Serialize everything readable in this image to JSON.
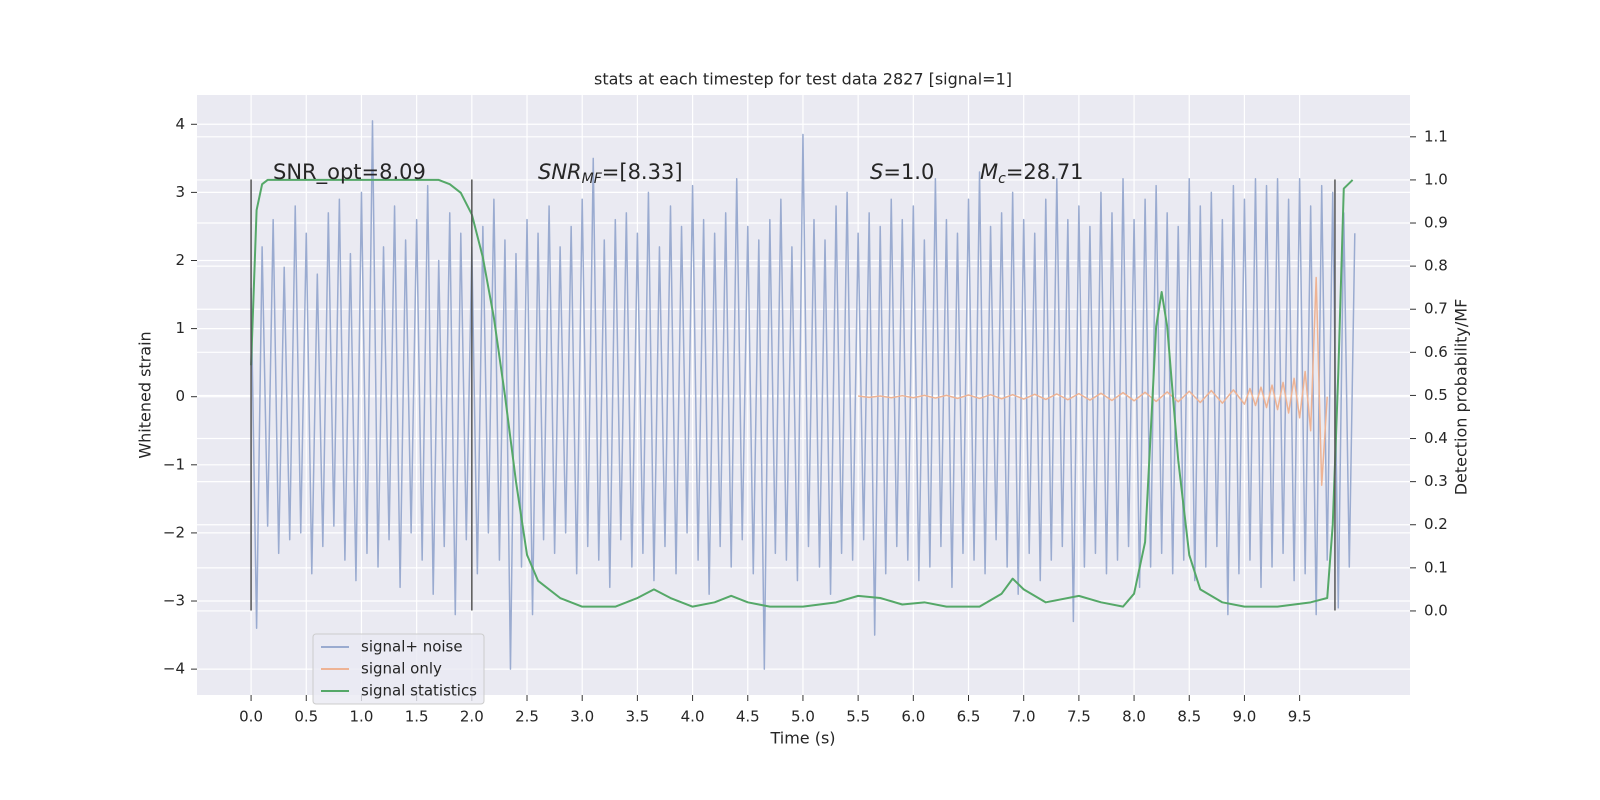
{
  "chart_data": {
    "type": "line",
    "title": "stats at each timestep for test data 2827 [signal=1]",
    "xlabel": "Time (s)",
    "ylabel": "Whitened strain",
    "y2label": "Detection probability/MF",
    "x": [
      0.0,
      0.05,
      0.1,
      0.15,
      0.2,
      0.25,
      0.3,
      0.35,
      0.4,
      0.45,
      0.5,
      0.55,
      0.6,
      0.65,
      0.7,
      0.75,
      0.8,
      0.85,
      0.9,
      0.95,
      1.0,
      1.05,
      1.1,
      1.15,
      1.2,
      1.25,
      1.3,
      1.35,
      1.4,
      1.45,
      1.5,
      1.55,
      1.6,
      1.65,
      1.7,
      1.75,
      1.8,
      1.85,
      1.9,
      1.95,
      2.0,
      2.05,
      2.1,
      2.15,
      2.2,
      2.25,
      2.3,
      2.35,
      2.4,
      2.45,
      2.5,
      2.55,
      2.6,
      2.65,
      2.7,
      2.75,
      2.8,
      2.85,
      2.9,
      2.95,
      3.0,
      3.05,
      3.1,
      3.15,
      3.2,
      3.25,
      3.3,
      3.35,
      3.4,
      3.45,
      3.5,
      3.55,
      3.6,
      3.65,
      3.7,
      3.75,
      3.8,
      3.85,
      3.9,
      3.95,
      4.0,
      4.05,
      4.1,
      4.15,
      4.2,
      4.25,
      4.3,
      4.35,
      4.4,
      4.45,
      4.5,
      4.55,
      4.6,
      4.65,
      4.7,
      4.75,
      4.8,
      4.85,
      4.9,
      4.95,
      5.0,
      5.05,
      5.1,
      5.15,
      5.2,
      5.25,
      5.3,
      5.35,
      5.4,
      5.45,
      5.5,
      5.55,
      5.6,
      5.65,
      5.7,
      5.75,
      5.8,
      5.85,
      5.9,
      5.95,
      6.0,
      6.05,
      6.1,
      6.15,
      6.2,
      6.25,
      6.3,
      6.35,
      6.4,
      6.45,
      6.5,
      6.55,
      6.6,
      6.65,
      6.7,
      6.75,
      6.8,
      6.85,
      6.9,
      6.95,
      7.0,
      7.05,
      7.1,
      7.15,
      7.2,
      7.25,
      7.3,
      7.35,
      7.4,
      7.45,
      7.5,
      7.55,
      7.6,
      7.65,
      7.7,
      7.75,
      7.8,
      7.85,
      7.9,
      7.95,
      8.0,
      8.05,
      8.1,
      8.15,
      8.2,
      8.25,
      8.3,
      8.35,
      8.4,
      8.45,
      8.5,
      8.55,
      8.6,
      8.65,
      8.7,
      8.75,
      8.8,
      8.85,
      8.9,
      8.95,
      9.0,
      9.05,
      9.1,
      9.15,
      9.2,
      9.25,
      9.3,
      9.35,
      9.4,
      9.45,
      9.5,
      9.55,
      9.6,
      9.65,
      9.7,
      9.75,
      9.8,
      9.85,
      9.9,
      9.95,
      10.0
    ],
    "series": [
      {
        "name": "signal+ noise",
        "color": "#9aabd0",
        "values": [
          1.6,
          -3.4,
          2.2,
          -1.9,
          2.6,
          -2.3,
          1.9,
          -2.1,
          2.8,
          -2.0,
          2.4,
          -2.6,
          1.8,
          -2.2,
          2.7,
          -1.9,
          2.9,
          -2.4,
          2.1,
          -2.7,
          3.0,
          -2.3,
          4.05,
          -2.5,
          2.2,
          -2.1,
          2.8,
          -2.8,
          2.3,
          -2.0,
          2.6,
          -2.4,
          3.1,
          -2.9,
          2.0,
          -2.2,
          2.7,
          -3.2,
          2.4,
          -2.1,
          2.2,
          -2.6,
          2.5,
          -2.0,
          2.9,
          -2.4,
          2.3,
          -4.0,
          2.1,
          -2.5,
          2.6,
          -3.2,
          2.4,
          -2.1,
          2.8,
          -2.3,
          2.2,
          -2.0,
          2.5,
          -2.6,
          2.9,
          -2.2,
          3.5,
          -2.4,
          2.3,
          -2.8,
          2.6,
          -2.1,
          2.7,
          -2.5,
          2.4,
          -2.3,
          3.0,
          -2.7,
          2.2,
          -2.2,
          2.8,
          -2.6,
          2.5,
          -2.0,
          3.1,
          -2.4,
          2.6,
          -2.9,
          2.4,
          -2.2,
          2.7,
          -2.5,
          3.2,
          -2.1,
          2.5,
          -2.6,
          2.3,
          -4.0,
          2.6,
          -2.3,
          2.9,
          -2.4,
          2.2,
          -2.7,
          3.85,
          -2.2,
          2.6,
          -2.5,
          2.3,
          -2.9,
          2.8,
          -2.3,
          3.0,
          -2.4,
          2.4,
          -2.1,
          2.7,
          -3.5,
          2.5,
          -2.6,
          2.9,
          -2.2,
          2.6,
          -2.4,
          2.8,
          -2.7,
          2.3,
          -2.5,
          3.2,
          -2.2,
          2.6,
          -2.8,
          2.4,
          -2.3,
          2.9,
          -2.4,
          3.3,
          -2.6,
          2.5,
          -2.1,
          2.7,
          -2.5,
          3.0,
          -2.9,
          2.6,
          -2.3,
          2.4,
          -2.7,
          2.9,
          -2.4,
          3.2,
          -2.2,
          2.6,
          -3.3,
          2.8,
          -2.5,
          2.5,
          -2.3,
          3.0,
          -2.6,
          2.7,
          -2.4,
          3.2,
          -2.2,
          2.6,
          -2.8,
          2.9,
          -2.5,
          3.1,
          -2.3,
          2.7,
          -2.6,
          2.5,
          -2.4,
          3.2,
          -2.7,
          2.8,
          -2.5,
          3.0,
          -2.2,
          2.6,
          -3.2,
          3.1,
          -2.6,
          2.9,
          -2.4,
          3.2,
          -2.8,
          3.1,
          -2.5,
          3.2,
          -2.3,
          2.9,
          -2.7,
          3.2,
          -2.6,
          2.8,
          -3.2,
          3.1,
          -2.4,
          3.0,
          -3.1,
          2.7,
          -2.5,
          2.4
        ]
      },
      {
        "name": "signal only",
        "color": "#eeb394",
        "x": [
          5.5,
          5.6,
          5.7,
          5.8,
          5.9,
          6.0,
          6.1,
          6.2,
          6.3,
          6.4,
          6.5,
          6.6,
          6.7,
          6.8,
          6.9,
          7.0,
          7.1,
          7.2,
          7.3,
          7.4,
          7.5,
          7.6,
          7.7,
          7.8,
          7.9,
          8.0,
          8.1,
          8.2,
          8.3,
          8.4,
          8.5,
          8.6,
          8.7,
          8.8,
          8.9,
          9.0,
          9.05,
          9.1,
          9.15,
          9.2,
          9.25,
          9.3,
          9.35,
          9.4,
          9.45,
          9.5,
          9.55,
          9.6,
          9.65,
          9.7,
          9.75
        ],
        "values": [
          0.01,
          -0.01,
          0.01,
          -0.015,
          0.015,
          -0.015,
          0.02,
          -0.02,
          0.02,
          -0.025,
          0.025,
          -0.025,
          0.03,
          -0.03,
          0.03,
          -0.035,
          0.035,
          -0.04,
          0.04,
          -0.045,
          0.045,
          -0.05,
          0.05,
          -0.055,
          0.06,
          -0.06,
          0.065,
          -0.07,
          0.07,
          -0.075,
          0.08,
          -0.085,
          0.09,
          -0.095,
          0.1,
          -0.11,
          0.12,
          -0.13,
          0.14,
          -0.16,
          0.17,
          -0.19,
          0.21,
          -0.24,
          0.27,
          -0.31,
          0.37,
          -0.5,
          1.75,
          -1.3,
          0.0
        ]
      },
      {
        "name": "signal statistics",
        "color": "#55a868",
        "axis": "y2",
        "x": [
          0.0,
          0.05,
          0.1,
          0.15,
          0.2,
          0.3,
          0.5,
          0.8,
          1.1,
          1.4,
          1.7,
          1.8,
          1.9,
          2.0,
          2.1,
          2.2,
          2.3,
          2.4,
          2.5,
          2.6,
          2.8,
          3.0,
          3.3,
          3.5,
          3.65,
          3.8,
          4.0,
          4.2,
          4.35,
          4.5,
          4.7,
          5.0,
          5.3,
          5.5,
          5.7,
          5.9,
          6.1,
          6.3,
          6.6,
          6.8,
          6.9,
          7.0,
          7.2,
          7.5,
          7.7,
          7.9,
          8.0,
          8.1,
          8.2,
          8.25,
          8.3,
          8.4,
          8.5,
          8.6,
          8.8,
          9.0,
          9.3,
          9.6,
          9.75,
          9.8,
          9.85,
          9.9,
          9.98
        ],
        "values": [
          0.57,
          0.93,
          0.99,
          1.0,
          1.0,
          1.0,
          1.0,
          1.0,
          1.0,
          1.0,
          1.0,
          0.99,
          0.97,
          0.92,
          0.82,
          0.68,
          0.5,
          0.3,
          0.13,
          0.07,
          0.03,
          0.01,
          0.01,
          0.03,
          0.05,
          0.03,
          0.01,
          0.02,
          0.035,
          0.02,
          0.01,
          0.01,
          0.02,
          0.035,
          0.03,
          0.015,
          0.02,
          0.01,
          0.01,
          0.04,
          0.075,
          0.05,
          0.02,
          0.035,
          0.02,
          0.01,
          0.04,
          0.16,
          0.66,
          0.74,
          0.66,
          0.35,
          0.13,
          0.05,
          0.02,
          0.01,
          0.01,
          0.02,
          0.03,
          0.2,
          0.55,
          0.98,
          1.0
        ]
      }
    ],
    "vlines": {
      "x": [
        0.0,
        2.0,
        9.82
      ],
      "ymin": -3.14,
      "ymax": 3.19,
      "color": "#555555"
    },
    "annotations": [
      {
        "text": "SNR_opt=8.09"
      },
      {
        "main": "SNR",
        "sub": "MF",
        "rest": "=[8.33]"
      },
      {
        "main": "S",
        "rest": "=1.0"
      },
      {
        "main": "M",
        "sub": "c",
        "rest": "=28.71"
      }
    ],
    "xlim": [
      -0.49,
      10.5
    ],
    "xticks": [
      {
        "value": 0,
        "label": "0.0"
      },
      0.5,
      {
        "value": 1,
        "label": "1.0"
      },
      1.5,
      {
        "value": 2,
        "label": "2.0"
      },
      2.5,
      {
        "value": 3,
        "label": "3.0"
      },
      3.5,
      {
        "value": 4,
        "label": "4.0"
      },
      4.5,
      {
        "value": 5,
        "label": "5.0"
      },
      5.5,
      {
        "value": 6,
        "label": "6.0"
      },
      6.5,
      {
        "value": 7,
        "label": "7.0"
      },
      7.5,
      {
        "value": 8,
        "label": "8.0"
      },
      8.5,
      {
        "value": 9,
        "label": "9.0"
      },
      9.5
    ],
    "ylim": [
      -4.38,
      4.43
    ],
    "yticks": [
      {
        "value": -4,
        "label": "−4"
      },
      {
        "value": -3,
        "label": "−3"
      },
      {
        "value": -2,
        "label": "−2"
      },
      {
        "value": -1,
        "label": "−1"
      },
      0,
      1,
      2,
      3,
      4
    ],
    "y2lim": [
      -0.195,
      1.197
    ],
    "y2ticks": [
      {
        "value": 0,
        "label": "0.0"
      },
      0.1,
      0.2,
      0.3,
      0.4,
      0.5,
      0.6,
      0.7,
      0.8,
      0.9,
      {
        "value": 1,
        "label": "1.0"
      },
      1.1
    ],
    "grid": true,
    "legend": "lower left"
  }
}
